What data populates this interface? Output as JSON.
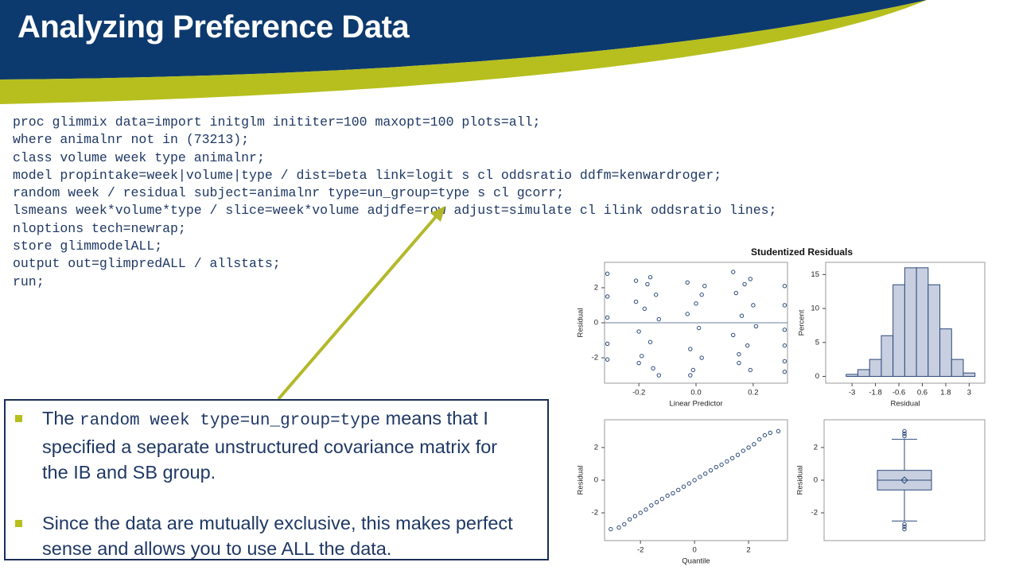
{
  "header": {
    "title": "Analyzing Preference Data"
  },
  "code": {
    "lines": [
      "proc glimmix data=import initglm inititer=100 maxopt=100 plots=all;",
      "where animalnr not in (73213);",
      "class volume week type animalnr;",
      "model propintake=week|volume|type / dist=beta link=logit s cl oddsratio ddfm=kenwardroger;",
      "random week / residual subject=animalnr type=un_group=type s cl gcorr;",
      "lsmeans week*volume*type / slice=week*volume adjdfe=row adjust=simulate cl ilink oddsratio lines;",
      "nloptions tech=newrap;",
      "store glimmodelALL;",
      "output out=glimpredALL / allstats;",
      "run;"
    ]
  },
  "callout": {
    "bullets": [
      [
        "The ",
        "random week type=un_group=type",
        " means that I specified a separate unstructured covariance matrix for the IB and SB group."
      ],
      [
        "Since the data are mutually exclusive, this makes perfect sense and allows you to use ALL the data."
      ]
    ]
  },
  "panel": {
    "title": "Studentized Residuals",
    "scatter": {
      "type": "scatter",
      "xlabel": "Linear Predictor",
      "ylabel": "Residual",
      "xlim": [
        -0.32,
        0.32
      ],
      "ylim": [
        -3.45,
        3.45
      ],
      "xticks": [
        -0.2,
        {
          "value": 0,
          "label": "0.0"
        },
        0.2
      ],
      "yticks": [
        -2,
        0,
        2
      ],
      "x": [
        -0.31,
        -0.31,
        -0.31,
        -0.31,
        -0.31,
        -0.21,
        -0.21,
        -0.2,
        -0.19,
        -0.18,
        -0.17,
        -0.16,
        -0.15,
        -0.14,
        -0.13,
        -0.13,
        -0.2,
        -0.16,
        -0.03,
        -0.03,
        -0.02,
        -0.01,
        0.0,
        0.01,
        0.02,
        0.03,
        -0.02,
        0.02,
        0.13,
        0.13,
        0.14,
        0.15,
        0.16,
        0.17,
        0.18,
        0.19,
        0.2,
        0.21,
        0.15,
        0.19,
        0.31,
        0.31,
        0.31,
        0.31,
        0.31,
        0.31
      ],
      "y": [
        2.8,
        1.5,
        0.3,
        -1.2,
        -2.1,
        2.4,
        1.2,
        -0.5,
        -1.9,
        0.8,
        2.2,
        -1.1,
        -2.6,
        1.6,
        -3.0,
        0.2,
        -2.3,
        2.6,
        2.3,
        0.5,
        -1.5,
        -2.7,
        1.1,
        -0.3,
        -2.0,
        2.1,
        -3.0,
        1.6,
        2.9,
        -0.7,
        1.7,
        -2.3,
        0.4,
        2.2,
        -1.3,
        -2.7,
        1.0,
        -0.2,
        -1.8,
        2.5,
        2.1,
        1.0,
        -0.4,
        -1.3,
        -2.2,
        -2.8
      ]
    },
    "histogram": {
      "type": "histogram",
      "xlabel": "Residual",
      "ylabel": "Percent",
      "xlim": [
        -4.35,
        3.8
      ],
      "ylim": [
        -1,
        16.8
      ],
      "xticks": [
        -3,
        -1.8,
        -0.6,
        0.6,
        1.8,
        3
      ],
      "yticks": [
        0,
        5,
        10,
        15
      ],
      "bins": [
        -3.3,
        -2.7,
        -2.1,
        -1.5,
        -0.9,
        -0.3,
        0.3,
        0.9,
        1.5,
        2.1,
        2.7,
        3.3
      ],
      "values": [
        0.3,
        1,
        2.5,
        6,
        13.5,
        16,
        16,
        13.5,
        7,
        2.5,
        0.5
      ]
    },
    "qq": {
      "type": "scatter",
      "xlabel": "Quantile",
      "ylabel": "Residual",
      "xlim": [
        -3.33,
        3.44
      ],
      "ylim": [
        -3.7,
        3.7
      ],
      "xticks": [
        -2,
        0,
        2
      ],
      "yticks": [
        -2,
        0,
        2
      ],
      "x": [
        -3.1,
        -2.8,
        -2.6,
        -2.4,
        -2.2,
        -2.0,
        -1.8,
        -1.6,
        -1.4,
        -1.2,
        -1.0,
        -0.8,
        -0.6,
        -0.4,
        -0.2,
        0.0,
        0.2,
        0.4,
        0.6,
        0.8,
        1.0,
        1.2,
        1.4,
        1.6,
        1.8,
        2.0,
        2.2,
        2.4,
        2.6,
        2.8,
        3.1
      ],
      "y": [
        -3.0,
        -2.9,
        -2.7,
        -2.4,
        -2.2,
        -2.0,
        -1.8,
        -1.55,
        -1.35,
        -1.15,
        -0.95,
        -0.8,
        -0.6,
        -0.4,
        -0.2,
        0.0,
        0.2,
        0.4,
        0.6,
        0.8,
        0.95,
        1.15,
        1.35,
        1.55,
        1.8,
        2.0,
        2.2,
        2.5,
        2.75,
        2.9,
        3.0
      ]
    },
    "box": {
      "type": "box",
      "ylabel": "Residual",
      "ylim": [
        -3.7,
        3.7
      ],
      "yticks": [
        -2,
        0,
        2
      ],
      "whisker_low": -2.5,
      "q1": -0.6,
      "median": 0,
      "mean": 0,
      "q3": 0.6,
      "whisker_high": 2.5,
      "outliers": [
        2.7,
        2.85,
        3.0,
        -2.7,
        -2.85,
        -3.0
      ]
    }
  }
}
